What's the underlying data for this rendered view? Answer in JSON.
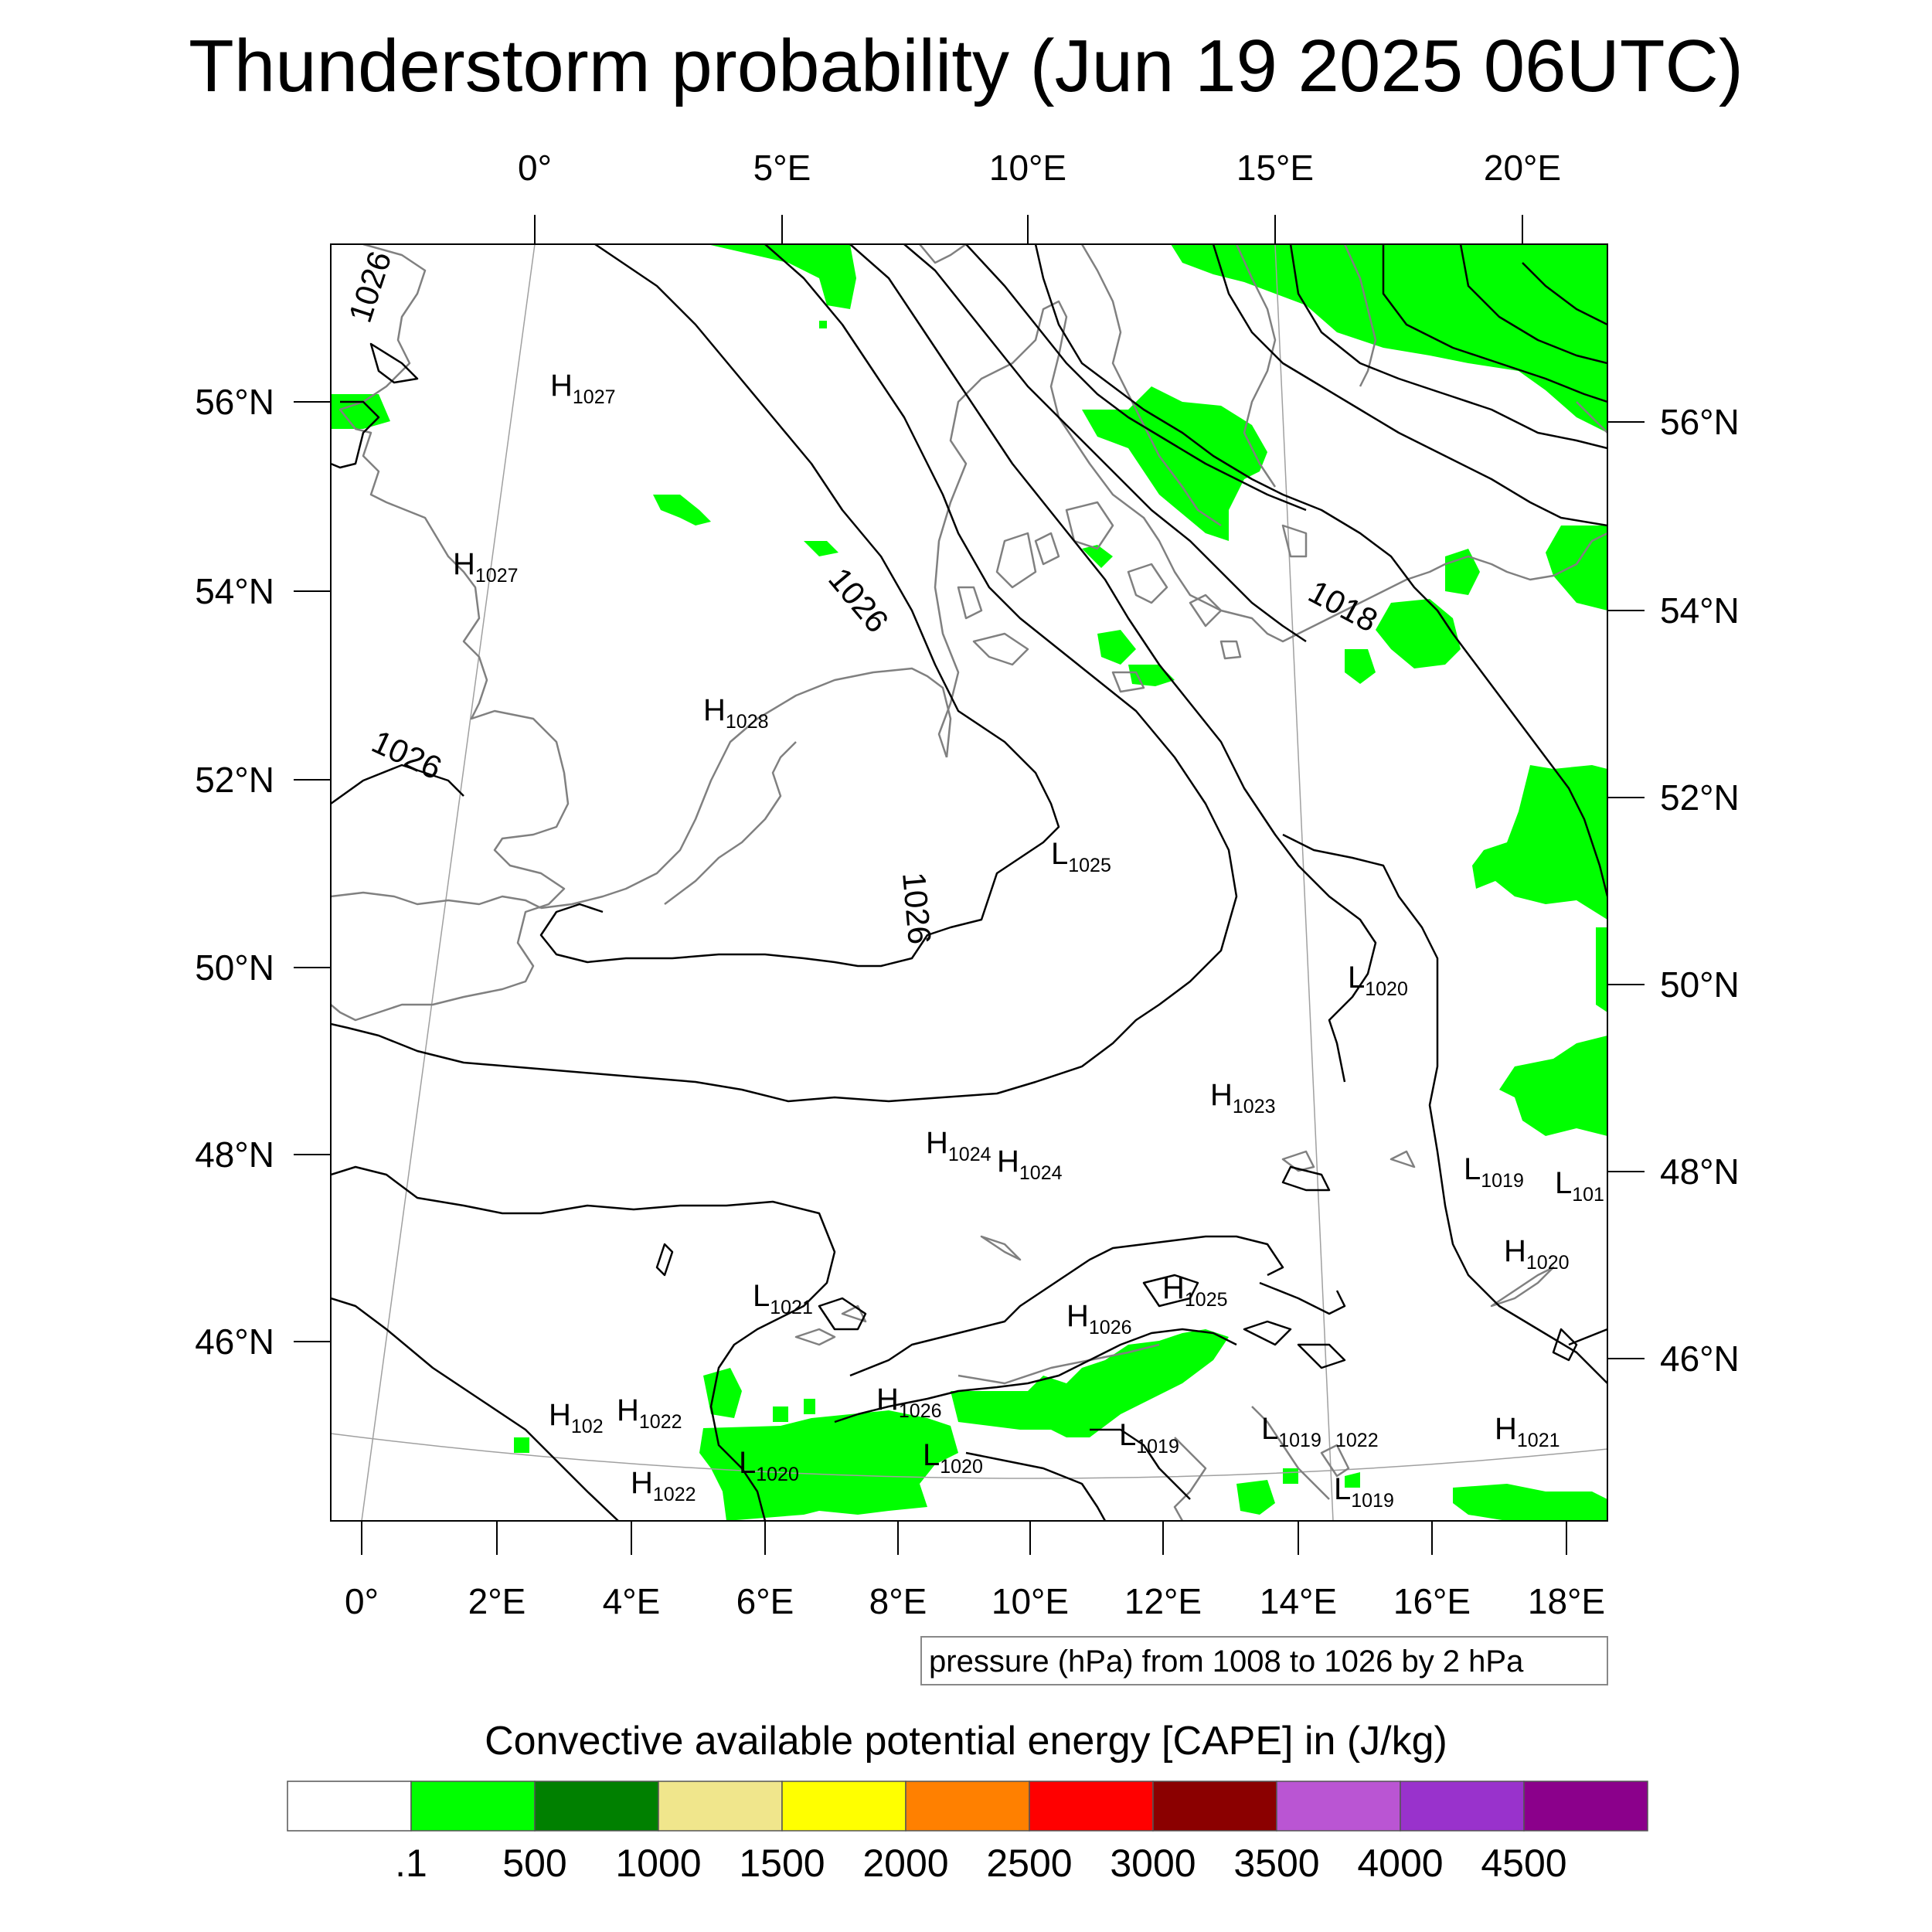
{
  "title": "Thunderstorm probability (Jun 19 2025 06UTC)",
  "top_lon_labels": [
    "0°",
    "5°E",
    "10°E",
    "15°E",
    "20°E"
  ],
  "bottom_lon_labels": [
    "0°",
    "2°E",
    "4°E",
    "6°E",
    "8°E",
    "10°E",
    "12°E",
    "14°E",
    "16°E",
    "18°E"
  ],
  "left_lat_labels": [
    "56°N",
    "54°N",
    "52°N",
    "50°N",
    "48°N",
    "46°N"
  ],
  "right_lat_labels": [
    "56°N",
    "54°N",
    "52°N",
    "50°N",
    "48°N",
    "46°N"
  ],
  "contour_info": "pressure (hPa) from 1008 to 1026 by 2 hPa",
  "colorbar": {
    "caption": "Convective available potential energy [CAPE] in (J/kg)",
    "tick_labels": [
      ".1",
      "500",
      "1000",
      "1500",
      "2000",
      "2500",
      "3000",
      "3500",
      "4000",
      "4500"
    ],
    "colors": [
      "#ffffff",
      "#00ff00",
      "#008000",
      "#f0e68c",
      "#ffff00",
      "#ff8000",
      "#ff0000",
      "#8b0000",
      "#ba55d3",
      "#9932cc",
      "#8b008b"
    ]
  },
  "isobar_labels": [
    "1026",
    "1026",
    "1026",
    "1026",
    "1018"
  ],
  "pressure_centers": [
    {
      "letter": "H",
      "value": "1027"
    },
    {
      "letter": "H",
      "value": "1027"
    },
    {
      "letter": "H",
      "value": "1028"
    },
    {
      "letter": "L",
      "value": "1025"
    },
    {
      "letter": "L",
      "value": "1020"
    },
    {
      "letter": "H",
      "value": "1023"
    },
    {
      "letter": "H",
      "value": "1024"
    },
    {
      "letter": "H",
      "value": "1024"
    },
    {
      "letter": "L",
      "value": "1019"
    },
    {
      "letter": "L",
      "value": "101"
    },
    {
      "letter": "H",
      "value": "1020"
    },
    {
      "letter": "L",
      "value": "1021"
    },
    {
      "letter": "H",
      "value": "1025"
    },
    {
      "letter": "H",
      "value": "1026"
    },
    {
      "letter": "H",
      "value": "102"
    },
    {
      "letter": "H",
      "value": "1022"
    },
    {
      "letter": "H",
      "value": "1026"
    },
    {
      "letter": "L",
      "value": "1020"
    },
    {
      "letter": "L",
      "value": "1020"
    },
    {
      "letter": "L",
      "value": "1019"
    },
    {
      "letter": "L",
      "value": "1019"
    },
    {
      "letter": "H",
      "value": "1022"
    },
    {
      "letter": "",
      "value": "1022"
    },
    {
      "letter": "L",
      "value": "1019"
    },
    {
      "letter": "H",
      "value": "1021"
    }
  ],
  "colors": {
    "cape_fill": "#00ff00",
    "coastline": "#808080",
    "isobar": "#000000",
    "graticule": "#a0a0a0"
  }
}
